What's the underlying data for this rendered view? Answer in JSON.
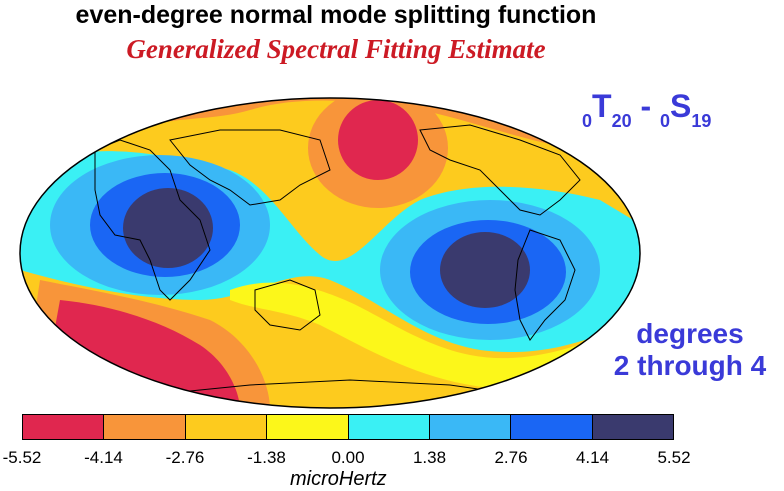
{
  "title": "even-degree normal mode splitting function",
  "subtitle": "Generalized Spectral Fitting Estimate",
  "mode_label": {
    "t_prefix": "0",
    "t_letter": "T",
    "t_sub": "20",
    "dash": " - ",
    "s_prefix": "0",
    "s_letter": "S",
    "s_sub": "19"
  },
  "degrees_line1": "degrees",
  "degrees_line2": "2 through 4",
  "colorbar": {
    "colors": [
      "#e0274f",
      "#f8953a",
      "#fdcb1e",
      "#fcf71a",
      "#3af0f4",
      "#3ab8f6",
      "#1a66f4",
      "#3a3a6e"
    ],
    "ticks": [
      "-5.52",
      "-4.14",
      "-2.76",
      "-1.38",
      "0.00",
      "1.38",
      "2.76",
      "4.14",
      "5.52"
    ],
    "unit": "microHertz"
  }
}
